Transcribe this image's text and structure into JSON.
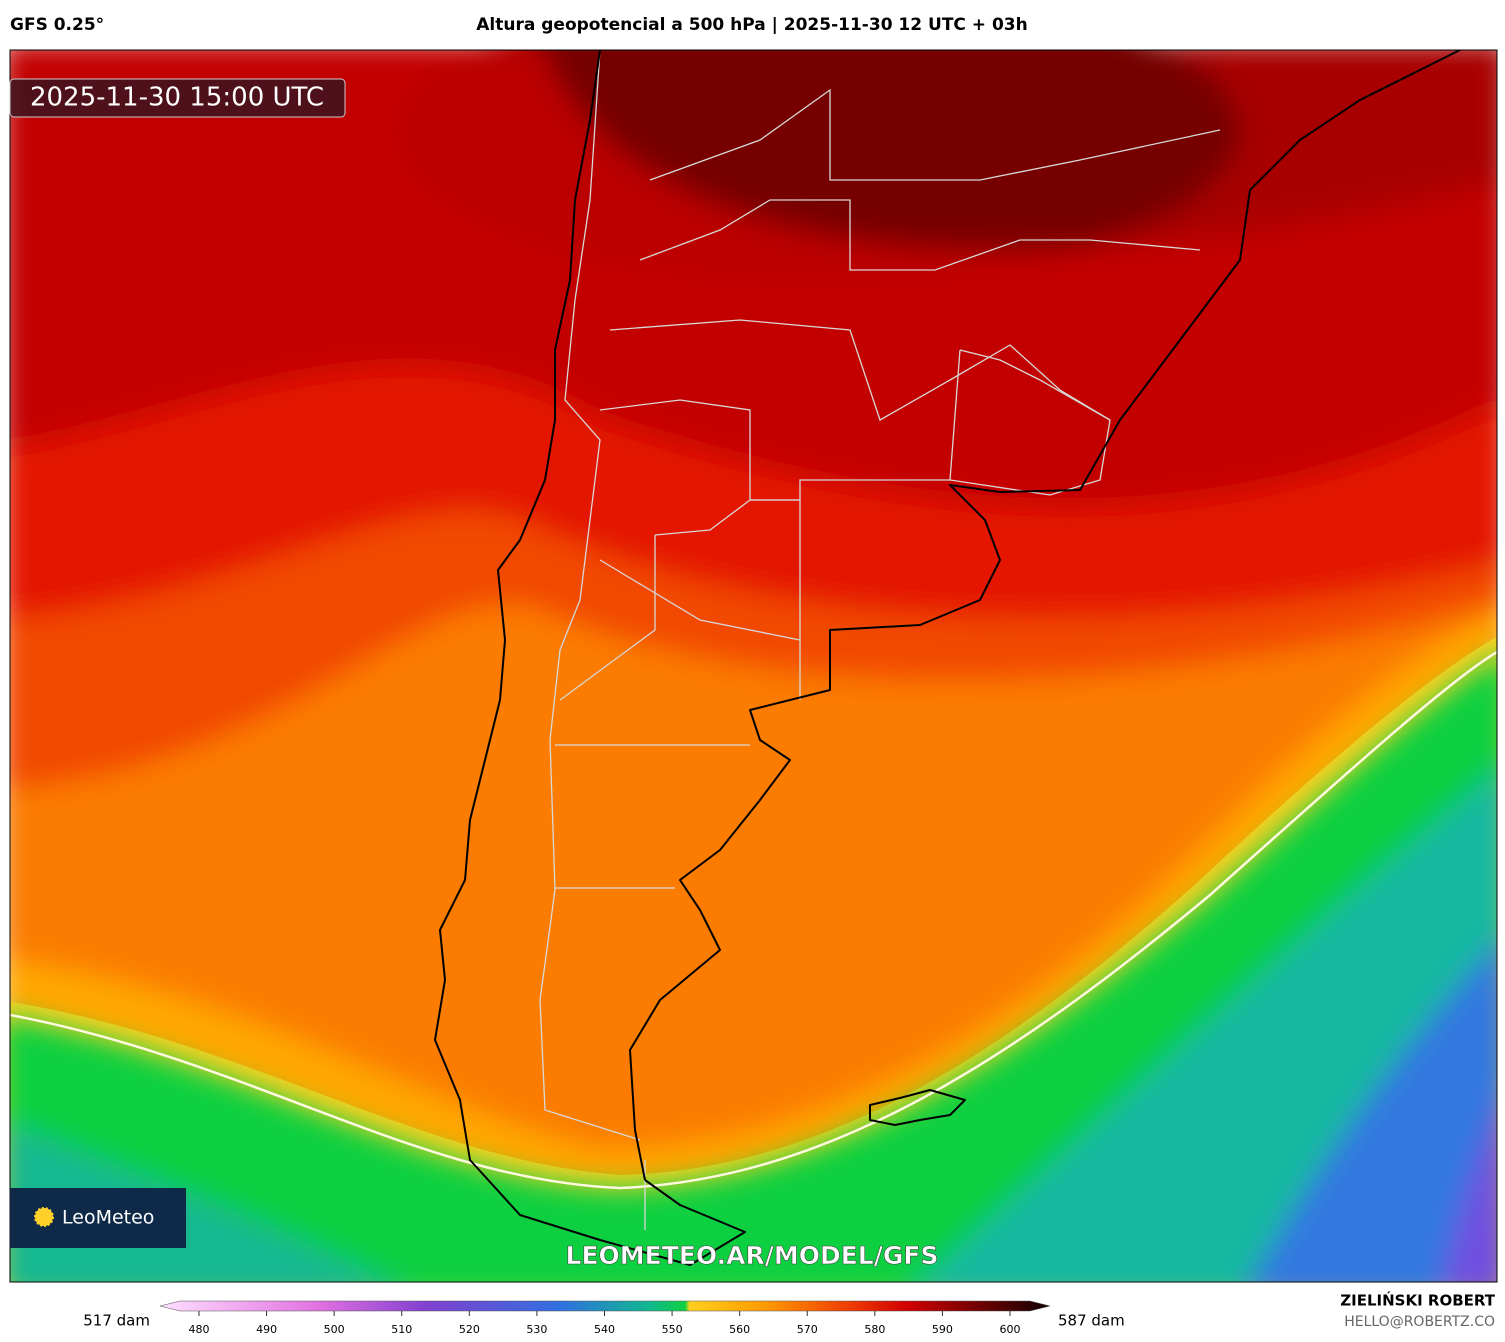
{
  "header": {
    "model": "GFS 0.25°",
    "title": "Altura geopotencial a 500 hPa | 2025-11-30 12 UTC + 03h"
  },
  "map": {
    "timestamp": "2025-11-30 15:00 UTC",
    "watermark": "LEOMETEO.AR/MODEL/GFS",
    "logo": "LeoMeteo"
  },
  "colorbar": {
    "min_label": "517 dam",
    "max_label": "587 dam",
    "ticks": [
      480,
      490,
      500,
      510,
      520,
      530,
      540,
      550,
      560,
      570,
      580,
      590,
      600
    ]
  },
  "credits": {
    "author": "ZIELIŃSKI ROBERT",
    "email": "HELLO@ROBERTZ.CO"
  }
}
